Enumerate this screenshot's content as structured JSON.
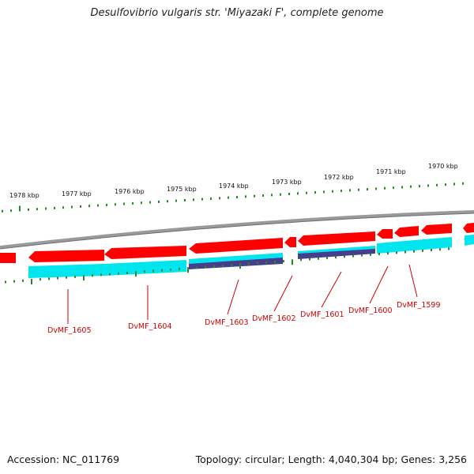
{
  "title": "Desulfovibrio vulgaris str. 'Miyazaki F', complete genome",
  "footer": {
    "accession": "Accession: NC_011769",
    "summary": "Topology: circular; Length: 4,040,304 bp; Genes: 3,256"
  },
  "scale_labels": [
    {
      "text": "1978 kbp"
    },
    {
      "text": "1977 kbp"
    },
    {
      "text": "1976 kbp"
    },
    {
      "text": "1975 kbp"
    },
    {
      "text": "1974 kbp"
    },
    {
      "text": "1973 kbp"
    },
    {
      "text": "1972 kbp"
    },
    {
      "text": "1971 kbp"
    },
    {
      "text": "1970 kbp"
    }
  ],
  "gene_labels": [
    {
      "text": "DvMF_1605"
    },
    {
      "text": "DvMF_1604"
    },
    {
      "text": "DvMF_1603"
    },
    {
      "text": "DvMF_1602"
    },
    {
      "text": "DvMF_1601"
    },
    {
      "text": "DvMF_1600"
    },
    {
      "text": "DvMF_1599"
    }
  ],
  "colors": {
    "gene": "#ff0000",
    "cds": "#00e5ee",
    "misc": "#483d8b",
    "ticks": "#228b22",
    "backbone": "#808080",
    "label": "#cc0000"
  }
}
